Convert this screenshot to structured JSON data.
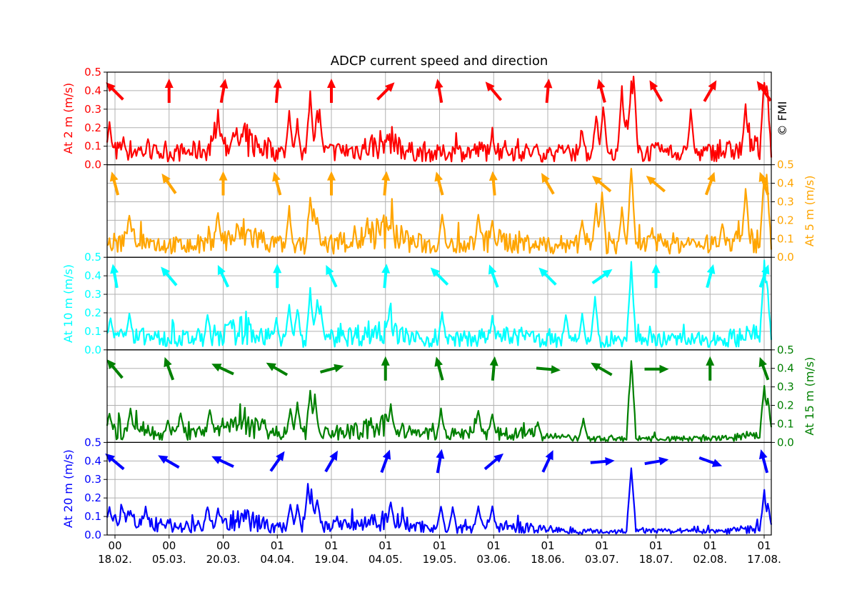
{
  "chart_data": {
    "type": "line",
    "title": "ADCP current speed and direction",
    "copyright": "© FMI",
    "x_ticks": [
      {
        "hour": "00",
        "date": "18.02."
      },
      {
        "hour": "00",
        "date": "05.03."
      },
      {
        "hour": "00",
        "date": "20.03."
      },
      {
        "hour": "01",
        "date": "04.04."
      },
      {
        "hour": "01",
        "date": "19.04."
      },
      {
        "hour": "01",
        "date": "04.05."
      },
      {
        "hour": "01",
        "date": "19.05."
      },
      {
        "hour": "01",
        "date": "03.06."
      },
      {
        "hour": "01",
        "date": "18.06."
      },
      {
        "hour": "01",
        "date": "03.07."
      },
      {
        "hour": "01",
        "date": "18.07."
      },
      {
        "hour": "01",
        "date": "02.08."
      },
      {
        "hour": "01",
        "date": "17.08."
      }
    ],
    "ylim": [
      0,
      0.5
    ],
    "y_ticks": [
      "0.0",
      "0.1",
      "0.2",
      "0.3",
      "0.4",
      "0.5"
    ],
    "grid": true,
    "panels": [
      {
        "ylabel": "At 2 m (m/s)",
        "color": "#ff0000",
        "axis_side": "left",
        "baseline": [
          0.07,
          0.08,
          0.06,
          0.07,
          0.09,
          0.13,
          0.07,
          0.06,
          0.07,
          0.08,
          0.12,
          0.07,
          0.06,
          0.07,
          0.08,
          0.07,
          0.06,
          0.07,
          0.05,
          0.06,
          0.07,
          0.06,
          0.07,
          0.08,
          0.1
        ],
        "peaks": [
          {
            "x": 2,
            "y": 0.24
          },
          {
            "x": 14,
            "y": 0.16
          },
          {
            "x": 95,
            "y": 0.3
          },
          {
            "x": 108,
            "y": 0.2
          },
          {
            "x": 156,
            "y": 0.3
          },
          {
            "x": 163,
            "y": 0.25
          },
          {
            "x": 174,
            "y": 0.42
          },
          {
            "x": 180,
            "y": 0.32
          },
          {
            "x": 182,
            "y": 0.31
          },
          {
            "x": 240,
            "y": 0.17
          },
          {
            "x": 330,
            "y": 0.17
          },
          {
            "x": 407,
            "y": 0.19
          },
          {
            "x": 419,
            "y": 0.3
          },
          {
            "x": 425,
            "y": 0.34
          },
          {
            "x": 441,
            "y": 0.45
          },
          {
            "x": 445,
            "y": 0.27
          },
          {
            "x": 449,
            "y": 0.5
          },
          {
            "x": 451,
            "y": 0.5
          },
          {
            "x": 500,
            "y": 0.3
          },
          {
            "x": 547,
            "y": 0.33
          },
          {
            "x": 563,
            "y": 0.5
          },
          {
            "x": 565,
            "y": 0.5
          }
        ],
        "arrows": [
          {
            "dir": 315,
            "len": 1.0
          },
          {
            "dir": 0,
            "len": 1.0
          },
          {
            "dir": 10,
            "len": 1.0
          },
          {
            "dir": 5,
            "len": 1.0
          },
          {
            "dir": 0,
            "len": 1.0
          },
          {
            "dir": 45,
            "len": 1.0
          },
          {
            "dir": 350,
            "len": 1.0
          },
          {
            "dir": 320,
            "len": 1.0
          },
          {
            "dir": 5,
            "len": 1.0
          },
          {
            "dir": 345,
            "len": 1.0
          },
          {
            "dir": 330,
            "len": 1.0
          },
          {
            "dir": 30,
            "len": 1.0
          },
          {
            "dir": 325,
            "len": 1.0
          }
        ]
      },
      {
        "ylabel": "At 5 m (m/s)",
        "color": "#ffa500",
        "axis_side": "right",
        "baseline": [
          0.07,
          0.09,
          0.07,
          0.06,
          0.08,
          0.13,
          0.07,
          0.06,
          0.07,
          0.09,
          0.14,
          0.08,
          0.06,
          0.07,
          0.09,
          0.08,
          0.06,
          0.08,
          0.06,
          0.06,
          0.08,
          0.07,
          0.07,
          0.09,
          0.11
        ],
        "peaks": [
          {
            "x": 19,
            "y": 0.25
          },
          {
            "x": 95,
            "y": 0.27
          },
          {
            "x": 156,
            "y": 0.28
          },
          {
            "x": 174,
            "y": 0.36
          },
          {
            "x": 177,
            "y": 0.29
          },
          {
            "x": 180,
            "y": 0.23
          },
          {
            "x": 242,
            "y": 0.19
          },
          {
            "x": 287,
            "y": 0.27
          },
          {
            "x": 318,
            "y": 0.25
          },
          {
            "x": 330,
            "y": 0.21
          },
          {
            "x": 407,
            "y": 0.23
          },
          {
            "x": 419,
            "y": 0.3
          },
          {
            "x": 424,
            "y": 0.37
          },
          {
            "x": 441,
            "y": 0.28
          },
          {
            "x": 449,
            "y": 0.5
          },
          {
            "x": 527,
            "y": 0.2
          },
          {
            "x": 547,
            "y": 0.4
          },
          {
            "x": 563,
            "y": 0.5
          },
          {
            "x": 565,
            "y": 0.46
          }
        ],
        "arrows": [
          {
            "dir": 345,
            "len": 1.0
          },
          {
            "dir": 325,
            "len": 1.0
          },
          {
            "dir": 0,
            "len": 1.0
          },
          {
            "dir": 345,
            "len": 1.0
          },
          {
            "dir": 0,
            "len": 1.0
          },
          {
            "dir": 5,
            "len": 1.0
          },
          {
            "dir": 345,
            "len": 1.0
          },
          {
            "dir": 355,
            "len": 1.0
          },
          {
            "dir": 330,
            "len": 1.0
          },
          {
            "dir": 310,
            "len": 1.0
          },
          {
            "dir": 310,
            "len": 1.0
          },
          {
            "dir": 20,
            "len": 1.0
          },
          {
            "dir": 340,
            "len": 1.0
          }
        ]
      },
      {
        "ylabel": "At 10 m (m/s)",
        "color": "#00ffff",
        "axis_side": "left",
        "baseline": [
          0.06,
          0.07,
          0.06,
          0.06,
          0.08,
          0.11,
          0.06,
          0.05,
          0.06,
          0.08,
          0.11,
          0.06,
          0.05,
          0.06,
          0.07,
          0.07,
          0.05,
          0.06,
          0.05,
          0.05,
          0.06,
          0.05,
          0.06,
          0.07,
          0.09
        ],
        "peaks": [
          {
            "x": 3,
            "y": 0.2
          },
          {
            "x": 19,
            "y": 0.22
          },
          {
            "x": 86,
            "y": 0.2
          },
          {
            "x": 145,
            "y": 0.18
          },
          {
            "x": 156,
            "y": 0.26
          },
          {
            "x": 163,
            "y": 0.25
          },
          {
            "x": 174,
            "y": 0.35
          },
          {
            "x": 180,
            "y": 0.3
          },
          {
            "x": 183,
            "y": 0.25
          },
          {
            "x": 242,
            "y": 0.23
          },
          {
            "x": 287,
            "y": 0.22
          },
          {
            "x": 330,
            "y": 0.19
          },
          {
            "x": 393,
            "y": 0.2
          },
          {
            "x": 407,
            "y": 0.2
          },
          {
            "x": 418,
            "y": 0.29
          },
          {
            "x": 449,
            "y": 0.5
          },
          {
            "x": 563,
            "y": 0.5
          },
          {
            "x": 565,
            "y": 0.42
          }
        ],
        "arrows": [
          {
            "dir": 350,
            "len": 1.0
          },
          {
            "dir": 320,
            "len": 1.0
          },
          {
            "dir": 335,
            "len": 1.0
          },
          {
            "dir": 0,
            "len": 1.0
          },
          {
            "dir": 335,
            "len": 1.0
          },
          {
            "dir": 5,
            "len": 1.0
          },
          {
            "dir": 315,
            "len": 1.0
          },
          {
            "dir": 340,
            "len": 1.0
          },
          {
            "dir": 315,
            "len": 1.0
          },
          {
            "dir": 55,
            "len": 1.0
          },
          {
            "dir": 0,
            "len": 1.0
          },
          {
            "dir": 15,
            "len": 1.0
          },
          {
            "dir": 20,
            "len": 1.0
          }
        ]
      },
      {
        "ylabel": "At 15 m (m/s)",
        "color": "#008000",
        "axis_side": "right",
        "baseline": [
          0.06,
          0.06,
          0.05,
          0.05,
          0.06,
          0.09,
          0.05,
          0.05,
          0.05,
          0.06,
          0.09,
          0.05,
          0.04,
          0.05,
          0.05,
          0.05,
          0.03,
          0.02,
          0.02,
          0.02,
          0.02,
          0.02,
          0.02,
          0.03,
          0.04
        ],
        "peaks": [
          {
            "x": 2,
            "y": 0.18
          },
          {
            "x": 20,
            "y": 0.2
          },
          {
            "x": 52,
            "y": 0.13
          },
          {
            "x": 63,
            "y": 0.18
          },
          {
            "x": 88,
            "y": 0.2
          },
          {
            "x": 133,
            "y": 0.14
          },
          {
            "x": 157,
            "y": 0.2
          },
          {
            "x": 163,
            "y": 0.23
          },
          {
            "x": 174,
            "y": 0.32
          },
          {
            "x": 178,
            "y": 0.26
          },
          {
            "x": 243,
            "y": 0.22
          },
          {
            "x": 286,
            "y": 0.19
          },
          {
            "x": 318,
            "y": 0.19
          },
          {
            "x": 330,
            "y": 0.17
          },
          {
            "x": 369,
            "y": 0.12
          },
          {
            "x": 408,
            "y": 0.13
          },
          {
            "x": 449,
            "y": 0.47
          },
          {
            "x": 563,
            "y": 0.34
          },
          {
            "x": 566,
            "y": 0.26
          }
        ],
        "arrows": [
          {
            "dir": 320,
            "len": 1.0
          },
          {
            "dir": 340,
            "len": 1.0
          },
          {
            "dir": 295,
            "len": 1.0
          },
          {
            "dir": 300,
            "len": 1.0
          },
          {
            "dir": 75,
            "len": 1.0
          },
          {
            "dir": 0,
            "len": 1.0
          },
          {
            "dir": 345,
            "len": 1.0
          },
          {
            "dir": 5,
            "len": 1.0
          },
          {
            "dir": 95,
            "len": 1.0
          },
          {
            "dir": 300,
            "len": 1.0
          },
          {
            "dir": 90,
            "len": 1.0
          },
          {
            "dir": 0,
            "len": 1.0
          },
          {
            "dir": 340,
            "len": 1.0
          }
        ]
      },
      {
        "ylabel": "At 20 m (m/s)",
        "color": "#0000ff",
        "axis_side": "left",
        "baseline": [
          0.07,
          0.07,
          0.05,
          0.05,
          0.06,
          0.09,
          0.04,
          0.04,
          0.05,
          0.06,
          0.09,
          0.05,
          0.04,
          0.04,
          0.05,
          0.04,
          0.03,
          0.02,
          0.02,
          0.02,
          0.02,
          0.02,
          0.02,
          0.03,
          0.04
        ],
        "peaks": [
          {
            "x": 2,
            "y": 0.17
          },
          {
            "x": 13,
            "y": 0.16
          },
          {
            "x": 20,
            "y": 0.14
          },
          {
            "x": 33,
            "y": 0.16
          },
          {
            "x": 86,
            "y": 0.17
          },
          {
            "x": 95,
            "y": 0.15
          },
          {
            "x": 157,
            "y": 0.19
          },
          {
            "x": 163,
            "y": 0.17
          },
          {
            "x": 172,
            "y": 0.29
          },
          {
            "x": 175,
            "y": 0.25
          },
          {
            "x": 180,
            "y": 0.22
          },
          {
            "x": 243,
            "y": 0.2
          },
          {
            "x": 286,
            "y": 0.17
          },
          {
            "x": 296,
            "y": 0.16
          },
          {
            "x": 318,
            "y": 0.17
          },
          {
            "x": 330,
            "y": 0.16
          },
          {
            "x": 449,
            "y": 0.4
          },
          {
            "x": 563,
            "y": 0.25
          },
          {
            "x": 566,
            "y": 0.18
          }
        ],
        "arrows": [
          {
            "dir": 310,
            "len": 1.0
          },
          {
            "dir": 300,
            "len": 1.0
          },
          {
            "dir": 295,
            "len": 1.0
          },
          {
            "dir": 35,
            "len": 1.0
          },
          {
            "dir": 30,
            "len": 1.0
          },
          {
            "dir": 20,
            "len": 1.0
          },
          {
            "dir": 10,
            "len": 1.0
          },
          {
            "dir": 50,
            "len": 1.0
          },
          {
            "dir": 25,
            "len": 1.0
          },
          {
            "dir": 85,
            "len": 1.0
          },
          {
            "dir": 80,
            "len": 1.0
          },
          {
            "dir": 110,
            "len": 1.0
          },
          {
            "dir": 345,
            "len": 1.0
          }
        ]
      }
    ]
  }
}
